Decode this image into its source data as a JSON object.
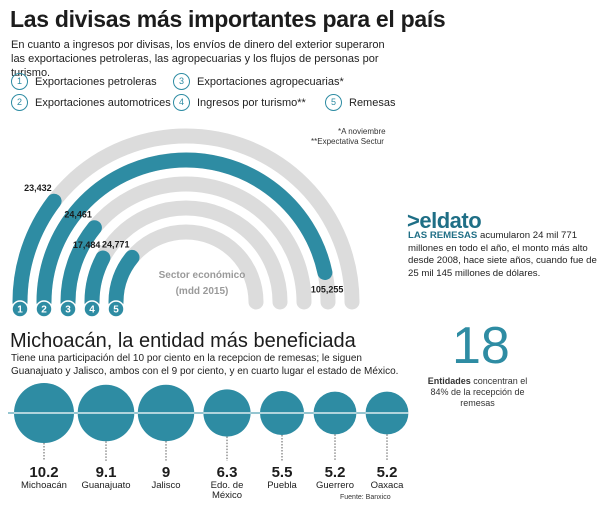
{
  "title": "Las divisas más importantes para el país",
  "intro": "En cuanto a ingresos por divisas, los envíos de dinero del exterior superaron las exportaciones petroleras, las agropecuarias y los flujos de personas por turismo.",
  "legend": [
    {
      "num": "1",
      "label": "Exportaciones petroleras"
    },
    {
      "num": "2",
      "label": "Exportaciones automotrices"
    },
    {
      "num": "3",
      "label": "Exportaciones agropecuarias*"
    },
    {
      "num": "4",
      "label": "Ingresos por turismo**"
    },
    {
      "num": "5",
      "label": "Remesas"
    }
  ],
  "notes": {
    "n1": "*A noviembre",
    "n2": "**Expectativa Sectur"
  },
  "chart_data": [
    {
      "type": "bar",
      "subtype": "radial-arc",
      "title": "Sector económico",
      "subtitle": "(mdd 2015)",
      "categories": [
        "1",
        "2",
        "3",
        "4",
        "5"
      ],
      "values": [
        23432,
        105255,
        24461,
        17484,
        24771
      ],
      "value_labels": [
        "23,432",
        "105,255",
        "24,461",
        "17,484",
        "24,771"
      ],
      "color": "#2e8ca3",
      "track_color": "#dcdcdc"
    },
    {
      "type": "bar",
      "subtype": "bubble-row",
      "title": "Michoacán, la entidad más beneficiada",
      "categories": [
        "Michoacán",
        "Guanajuato",
        "Jalisco",
        "Edo. de México",
        "Puebla",
        "Guerrero",
        "Oaxaca"
      ],
      "values": [
        10.2,
        9.1,
        9,
        6.3,
        5.5,
        5.2,
        5.2
      ],
      "value_labels": [
        "10.2",
        "9.1",
        "9",
        "6.3",
        "5.5",
        "5.2",
        "5.2"
      ],
      "color": "#2e8ca3"
    }
  ],
  "dato": {
    "logo": ">eldato",
    "highlight": "LAS REMESAS",
    "text": " acumularon 24 mil 771 millones en todo el año, el monto más alto desde 2008, hace siete años, cuando fue de 25 mil 145 millones de dólares."
  },
  "section2": {
    "title": "Michoacán, la entidad más beneficiada",
    "text": "Tiene una participación del 10 por ciento en la recepcion de remesas; le siguen Guanajuato y Jalisco, ambos con el 9 por ciento, y en cuarto lugar el estado de México."
  },
  "big": {
    "number": "18",
    "bold": "Entidades",
    "rest": " concentran el 84% de la recepción de remesas"
  },
  "source": "Fuente: Banxico"
}
